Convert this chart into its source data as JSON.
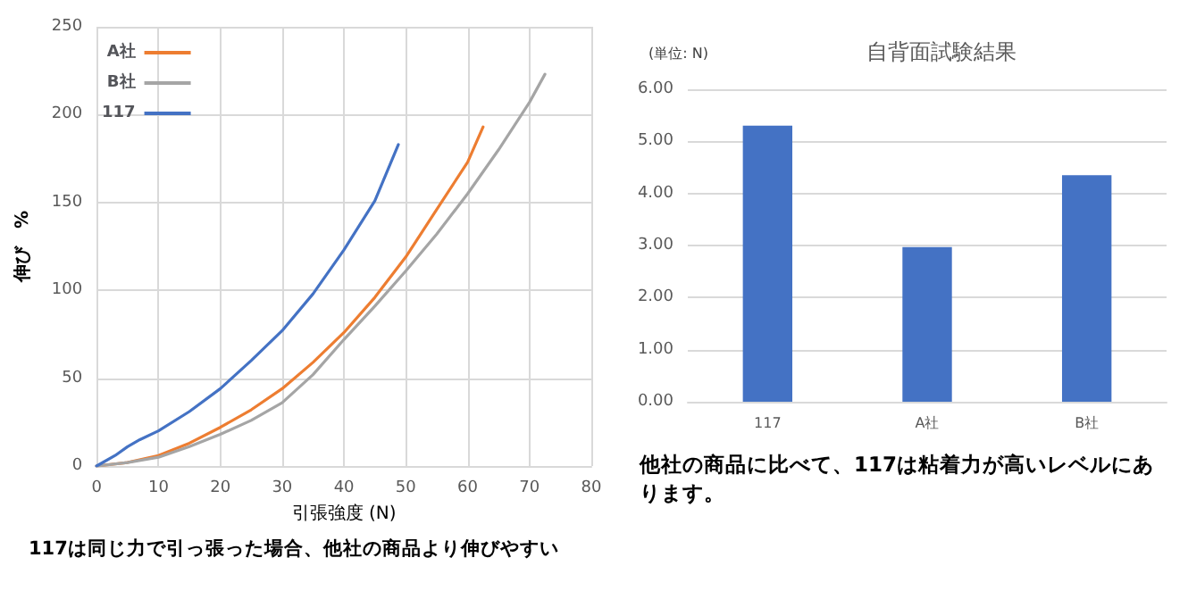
{
  "chart_data": [
    {
      "type": "line",
      "xlabel": "引張強度 (N)",
      "ylabel": "伸び　%",
      "xlim": [
        0,
        80
      ],
      "xticks": [
        0,
        10,
        20,
        30,
        40,
        50,
        60,
        70,
        80
      ],
      "ylim": [
        0,
        250
      ],
      "yticks": [
        0,
        50,
        100,
        150,
        200,
        250
      ],
      "grid": true,
      "legend": "top left",
      "marker": "none",
      "line_style": "solid",
      "annotations": [
        "117は同じ力で引っ張った場合、他社の商品より伸びやすい"
      ],
      "series": [
        {
          "name": "A社",
          "color": "#ed7d31",
          "x": [
            0,
            5,
            10,
            15,
            20,
            25,
            30,
            35,
            40,
            45,
            50,
            55,
            60,
            62.5
          ],
          "values": [
            0,
            2,
            6,
            13,
            22,
            32,
            44,
            59,
            76,
            96,
            119,
            146,
            173,
            193
          ]
        },
        {
          "name": "B社",
          "color": "#a5a5a5",
          "x": [
            0,
            5,
            10,
            15,
            20,
            25,
            30,
            35,
            40,
            45,
            50,
            55,
            60,
            65,
            70,
            72.5
          ],
          "values": [
            0,
            2,
            5,
            11,
            18,
            26,
            36,
            52,
            72,
            91,
            111,
            132,
            155,
            180,
            207,
            223
          ]
        },
        {
          "name": "117",
          "color": "#4472c4",
          "x": [
            0,
            3,
            5,
            7,
            10,
            15,
            20,
            25,
            30,
            35,
            40,
            45,
            48.8
          ],
          "values": [
            0,
            6,
            11,
            15,
            20,
            31,
            44,
            60,
            77,
            98,
            123,
            151,
            183
          ]
        }
      ]
    },
    {
      "type": "bar",
      "title": "自背面試験結果",
      "categories": [
        "117",
        "A社",
        "B社"
      ],
      "values": [
        5.3,
        2.97,
        4.35
      ],
      "color": "#4472c4",
      "ylim": [
        0,
        6
      ],
      "yticks": [
        {
          "value": 0,
          "label": "0.00"
        },
        {
          "value": 1,
          "label": "1.00"
        },
        {
          "value": 2,
          "label": "2.00"
        },
        {
          "value": 3,
          "label": "3.00"
        },
        {
          "value": 4,
          "label": "4.00"
        },
        {
          "value": 5,
          "label": "5.00"
        },
        {
          "value": 6,
          "label": "6.00"
        }
      ],
      "grid": "y",
      "legend": false,
      "annotations": [
        "(単位: N)",
        "他社の商品に比べて、117は粘着力が高いレベルにあります。"
      ]
    }
  ]
}
